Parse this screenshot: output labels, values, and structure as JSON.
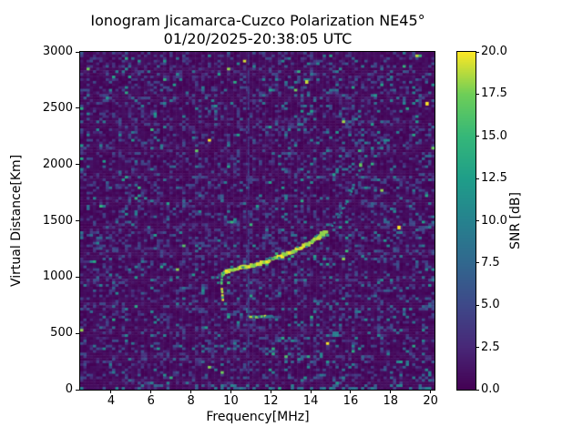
{
  "chart": {
    "title_line1": "Ionogram Jicamarca-Cuzco Polarization NE45°",
    "title_line2": "01/20/2025-20:38:05 UTC",
    "xlabel": "Frequency[MHz]",
    "ylabel": "Virtual Distance[Km]",
    "colorbar_label": "SNR [dB]"
  },
  "chart_data": {
    "type": "heatmap",
    "title": "Ionogram Jicamarca-Cuzco Polarization NE45°",
    "subtitle": "01/20/2025-20:38:05 UTC",
    "xlabel": "Frequency[MHz]",
    "ylabel": "Virtual Distance[Km]",
    "xlim": [
      2.45,
      20.2
    ],
    "ylim": [
      0,
      3000
    ],
    "xticks": [
      4,
      6,
      8,
      10,
      12,
      14,
      16,
      18,
      20
    ],
    "yticks": [
      0,
      500,
      1000,
      1500,
      2000,
      2500,
      3000
    ],
    "grid": false,
    "legend": "none",
    "colorbar": {
      "label": "SNR [dB]",
      "ticks": [
        "0.0",
        "2.5",
        "5.0",
        "7.5",
        "10.0",
        "12.5",
        "15.0",
        "17.5",
        "20.0"
      ],
      "min": 0,
      "max": 20,
      "colormap": "viridis"
    },
    "colormap_stops": [
      "#440154",
      "#482878",
      "#3e4989",
      "#31688e",
      "#26828e",
      "#1f9e89",
      "#35b779",
      "#6ece58",
      "#fde725"
    ],
    "background_value_color": "#440154",
    "noise": {
      "seed": 7,
      "cols": 111,
      "rows": 128,
      "p_yellow": 0.0012,
      "p_green": 0.007,
      "p_teal": 0.045,
      "p_blue": 0.27,
      "right_side_boost": 0.03,
      "bottom_row_boost": 0.18
    },
    "trace": {
      "rfi_line_freq": 10.88,
      "bright": [
        [
          9.61,
          1027
        ],
        [
          9.83,
          1051
        ],
        [
          10.06,
          1059
        ],
        [
          10.29,
          1075
        ],
        [
          10.75,
          1092
        ],
        [
          11.2,
          1108
        ],
        [
          11.66,
          1132
        ],
        [
          12.11,
          1156
        ],
        [
          12.57,
          1189
        ],
        [
          13.03,
          1221
        ],
        [
          13.48,
          1261
        ],
        [
          13.94,
          1302
        ],
        [
          14.39,
          1350
        ],
        [
          14.62,
          1383
        ],
        [
          14.85,
          1415
        ]
      ],
      "faint_tail": [
        [
          14.85,
          1415
        ],
        [
          15.08,
          1455
        ],
        [
          15.3,
          1504
        ],
        [
          15.53,
          1577
        ],
        [
          15.76,
          1649
        ],
        [
          15.99,
          1730
        ],
        [
          16.21,
          1843
        ],
        [
          16.44,
          1957
        ],
        [
          16.67,
          2102
        ]
      ],
      "hook": [
        [
          9.62,
          1035
        ],
        [
          9.56,
          1000
        ],
        [
          9.53,
          960
        ],
        [
          9.54,
          915
        ],
        [
          9.57,
          860
        ],
        [
          9.6,
          800
        ],
        [
          9.63,
          755
        ]
      ],
      "hook2": [
        [
          9.33,
          1000
        ],
        [
          9.36,
          955
        ],
        [
          9.4,
          915
        ]
      ],
      "es_layer": {
        "freq_start": 10.88,
        "freq_end": 12.15,
        "range_km": 648
      },
      "hot_spots": [
        [
          19.83,
          2540,
          20
        ],
        [
          18.42,
          1440,
          20
        ],
        [
          13.8,
          2733,
          19
        ],
        [
          16.5,
          1995,
          17
        ]
      ],
      "bright_snr_db": 20,
      "faint_snr_db": 9
    }
  }
}
